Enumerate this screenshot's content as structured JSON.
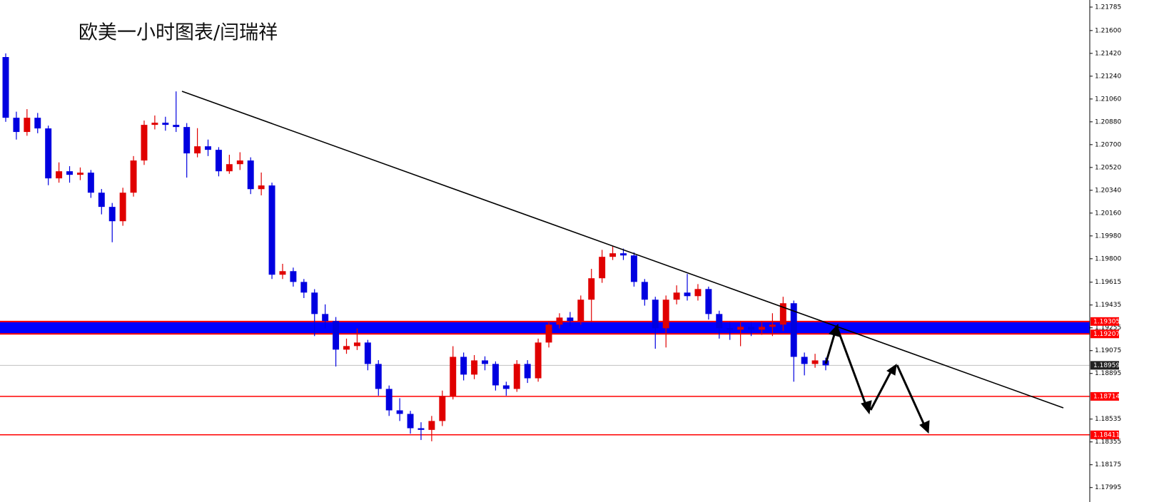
{
  "chart_data": {
    "type": "candlestick",
    "title": "欧美一小时图表/闫瑞祥",
    "up_color": "#e00000",
    "down_color": "#0000e0",
    "ylim": [
      1.17881,
      1.21841
    ],
    "yticks": [
      1.21785,
      {
        "value": 1.216,
        "label": "1.21600"
      },
      {
        "value": 1.2142,
        "label": "1.21420"
      },
      {
        "value": 1.2124,
        "label": "1.21240"
      },
      {
        "value": 1.2106,
        "label": "1.21060"
      },
      {
        "value": 1.2088,
        "label": "1.20880"
      },
      {
        "value": 1.207,
        "label": "1.20700"
      },
      {
        "value": 1.2052,
        "label": "1.20520"
      },
      {
        "value": 1.2034,
        "label": "1.20340"
      },
      {
        "value": 1.2016,
        "label": "1.20160"
      },
      {
        "value": 1.1998,
        "label": "1.19980"
      },
      {
        "value": 1.198,
        "label": "1.19800"
      },
      1.19615,
      1.19435,
      1.19255,
      1.19075,
      1.18895,
      1.18535,
      1.18355,
      1.18175,
      1.17995
    ],
    "zone": {
      "low": 1.19207,
      "high": 1.19305,
      "color": "#0000ff",
      "edge_color": "#ff0000"
    },
    "levels": [
      {
        "value": 1.18959,
        "color": "#c0c0c0",
        "label_color": "#222222"
      },
      {
        "value": 1.18714,
        "color": "#ff0000",
        "label_color": "#ff0000"
      },
      {
        "value": 1.18411,
        "color": "#ff0000",
        "label_color": "#ff0000"
      }
    ],
    "open": [
      1.21391,
      1.20912,
      1.208,
      1.20912,
      1.20828,
      1.20434,
      1.2049,
      1.20462,
      1.20479,
      1.20321,
      1.20209,
      1.20096,
      1.20321,
      1.20575,
      1.20856,
      1.20873,
      1.20856,
      1.20839,
      1.20631,
      1.20687,
      1.20659,
      1.2049,
      1.20546,
      1.20575,
      1.20349,
      1.20378,
      1.19674,
      1.19702,
      1.19617,
      1.19533,
      1.19364,
      1.19308,
      1.19083,
      1.19111,
      1.19139,
      1.1897,
      1.18773,
      1.18604,
      1.18576,
      1.18463,
      1.1845,
      1.1852,
      1.18717,
      1.19026,
      1.18886,
      1.18998,
      1.1897,
      1.18801,
      1.18773,
      1.1897,
      1.18857,
      1.19139,
      1.1928,
      1.19336,
      1.19308,
      1.19477,
      1.19646,
      1.19815,
      1.19843,
      1.19826,
      1.19617,
      1.19477,
      1.19252,
      1.19477,
      1.19533,
      1.19505,
      1.19561,
      1.19364,
      1.19252,
      1.1924,
      1.19263,
      1.1924,
      1.19263,
      1.1928,
      1.19449,
      1.19026,
      1.1897,
      1.18998
    ],
    "high": [
      1.2142,
      1.2096,
      1.2098,
      1.2095,
      1.2085,
      1.2056,
      1.2053,
      1.2052,
      1.205,
      1.2035,
      1.2024,
      1.2036,
      1.2061,
      1.2089,
      1.2093,
      1.2092,
      1.2112,
      1.2087,
      1.2083,
      1.2074,
      1.2068,
      1.2062,
      1.2064,
      1.206,
      1.2048,
      1.204,
      1.1976,
      1.1973,
      1.1964,
      1.1956,
      1.1944,
      1.1934,
      1.1917,
      1.1925,
      1.1916,
      1.19,
      1.188,
      1.187,
      1.186,
      1.1851,
      1.1856,
      1.1876,
      1.1911,
      1.1906,
      1.1904,
      1.1903,
      1.1899,
      1.1883,
      1.19,
      1.19,
      1.1917,
      1.1931,
      1.1937,
      1.1938,
      1.1951,
      1.1972,
      1.1987,
      1.199,
      1.1988,
      1.1985,
      1.1964,
      1.195,
      1.1951,
      1.1959,
      1.1968,
      1.196,
      1.1958,
      1.1939,
      1.193,
      1.1931,
      1.193,
      1.1931,
      1.1937,
      1.195,
      1.1947,
      1.1906,
      1.1905,
      1.1902
    ],
    "low": [
      1.2088,
      1.2074,
      1.2077,
      1.2079,
      1.2038,
      1.204,
      1.204,
      1.2042,
      1.2028,
      1.2015,
      1.1993,
      1.2006,
      1.2029,
      1.2054,
      1.2082,
      1.2081,
      1.208,
      1.2044,
      1.206,
      1.2061,
      1.2045,
      1.2047,
      1.205,
      1.2031,
      1.203,
      1.1964,
      1.1964,
      1.1958,
      1.1949,
      1.1919,
      1.1925,
      1.1895,
      1.1905,
      1.1908,
      1.1892,
      1.1872,
      1.1856,
      1.1852,
      1.1842,
      1.1837,
      1.1836,
      1.1848,
      1.1869,
      1.1884,
      1.1885,
      1.1892,
      1.1876,
      1.1872,
      1.1875,
      1.1882,
      1.1883,
      1.191,
      1.1925,
      1.1927,
      1.1928,
      1.193,
      1.1961,
      1.1979,
      1.1979,
      1.1958,
      1.1943,
      1.1909,
      1.191,
      1.1944,
      1.1947,
      1.1947,
      1.1932,
      1.1917,
      1.1916,
      1.1911,
      1.1919,
      1.192,
      1.1919,
      1.1923,
      1.1883,
      1.1888,
      1.1894,
      1.1892
    ],
    "close": [
      1.20912,
      1.208,
      1.20912,
      1.20828,
      1.20434,
      1.2049,
      1.20462,
      1.20479,
      1.20321,
      1.20209,
      1.20096,
      1.20321,
      1.20575,
      1.20856,
      1.20873,
      1.20856,
      1.20839,
      1.20631,
      1.20687,
      1.20659,
      1.2049,
      1.20546,
      1.20575,
      1.20349,
      1.20378,
      1.19674,
      1.19702,
      1.19617,
      1.19533,
      1.19364,
      1.19308,
      1.19083,
      1.19111,
      1.19139,
      1.1897,
      1.18773,
      1.18604,
      1.18576,
      1.18463,
      1.1845,
      1.1852,
      1.18717,
      1.19026,
      1.18886,
      1.18998,
      1.1897,
      1.18801,
      1.18773,
      1.1897,
      1.18857,
      1.19139,
      1.1928,
      1.19336,
      1.19308,
      1.19477,
      1.19646,
      1.19815,
      1.19843,
      1.19826,
      1.19617,
      1.19477,
      1.19252,
      1.19477,
      1.19533,
      1.19505,
      1.19561,
      1.19364,
      1.19252,
      1.1924,
      1.19263,
      1.1924,
      1.19263,
      1.1928,
      1.19449,
      1.19026,
      1.1897,
      1.18998,
      1.18959
    ]
  }
}
